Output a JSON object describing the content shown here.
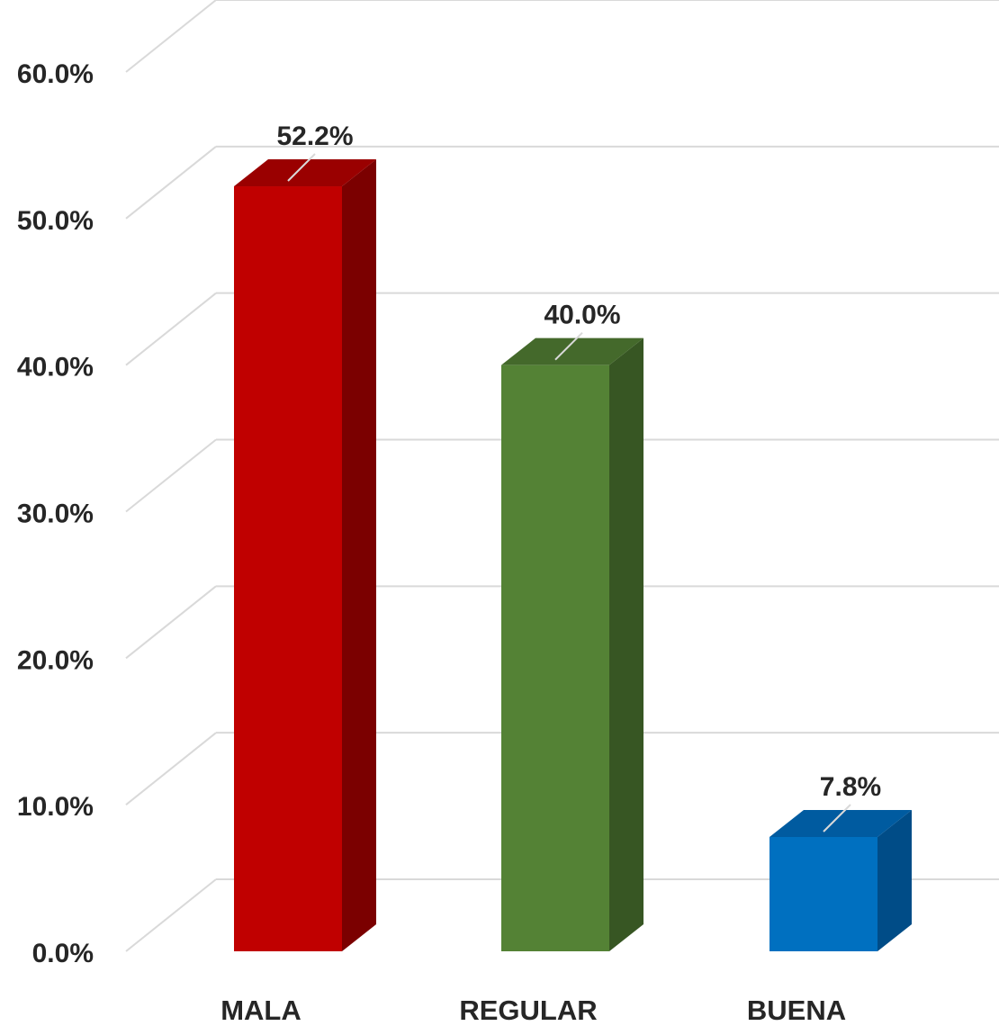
{
  "chart_data": {
    "type": "bar",
    "style": "3d-column",
    "categories": [
      "MALA",
      "REGULAR",
      "BUENA"
    ],
    "values": [
      52.2,
      40.0,
      7.8
    ],
    "value_labels": [
      "52.2%",
      "40.0%",
      "7.8%"
    ],
    "colors": [
      "#c00000",
      "#548235",
      "#0070c0"
    ],
    "side_colors": [
      "#7b0000",
      "#375623",
      "#004c87"
    ],
    "top_colors": [
      "#9a0000",
      "#44692b",
      "#005ba0"
    ],
    "yticks": [
      0,
      10,
      20,
      30,
      40,
      50,
      60
    ],
    "ytick_labels": [
      "0.0%",
      "10.0%",
      "20.0%",
      "30.0%",
      "40.0%",
      "50.0%",
      "60.0%"
    ],
    "ylim": [
      0,
      60
    ],
    "grid": true,
    "grid_color": "#d9d9d9",
    "legend": false
  }
}
